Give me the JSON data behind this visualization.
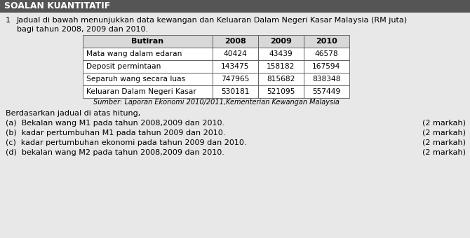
{
  "header_title": "SOALAN KUANTITATIF",
  "question_number": "1",
  "question_text_line1": "Jadual di bawah menunjukkan data kewangan dan Keluaran Dalam Negeri Kasar Malaysia (RM juta)",
  "question_text_line2": "bagi tahun 2008, 2009 dan 2010.",
  "table_col_headers": [
    "Butiran",
    "2008",
    "2009",
    "2010"
  ],
  "table_rows": [
    [
      "Mata wang dalam edaran",
      "40424",
      "43439",
      "46578"
    ],
    [
      "Deposit permintaan",
      "143475",
      "158182",
      "167594"
    ],
    [
      "Separuh wang secara luas",
      "747965",
      "815682",
      "838348"
    ],
    [
      "Keluaran Dalam Negeri Kasar",
      "530181",
      "521095",
      "557449"
    ]
  ],
  "source_text": "Sumber: Laporan Ekonomi 2010/2011,Kementerian Kewangan Malaysia",
  "instruction_text": "Berdasarkan jadual di atas hitung,",
  "sub_questions": [
    "(a)  Bekalan wang M1 pada tahun 2008,2009 dan 2010.",
    "(b)  kadar pertumbuhan M1 pada tahun 2009 dan 2010.",
    "(c)  kadar pertumbuhan ekonomi pada tahun 2009 dan 2010.",
    "(d)  bekalan wang M2 pada tahun 2008,2009 dan 2010."
  ],
  "marks": [
    "(2 markah)",
    "(2 markah)",
    "(2 markah)",
    "(2 markah)"
  ],
  "header_bg_color": "#555555",
  "header_text_color": "#ffffff",
  "bg_color": "#e8e8e8",
  "table_header_bg": "#d8d8d8",
  "font_size_small": 7.0,
  "font_size_body": 8.0,
  "font_size_header_bar": 9.0
}
